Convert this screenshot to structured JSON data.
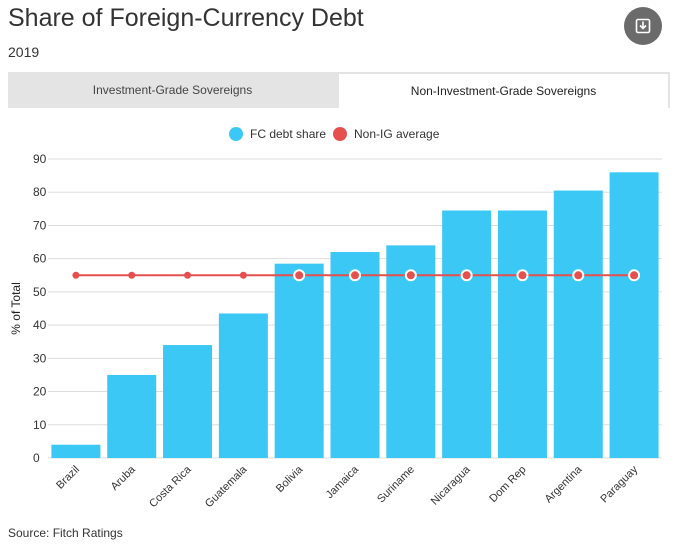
{
  "header": {
    "title": "Share of Foreign-Currency Debt",
    "subtitle": "2019",
    "download_icon": "download-icon"
  },
  "tabs": [
    {
      "label": "Investment-Grade Sovereigns",
      "active": false
    },
    {
      "label": "Non-Investment-Grade Sovereigns",
      "active": true
    }
  ],
  "footer": {
    "source": "Source: Fitch Ratings"
  },
  "colors": {
    "bar": "#3cc8f5",
    "line": "#e5504e",
    "grid": "#dddddd"
  },
  "chart_data": {
    "type": "bar",
    "categories": [
      "Brazil",
      "Aruba",
      "Costa Rica",
      "Guatemala",
      "Bolivia",
      "Jamaica",
      "Suriname",
      "Nicaragua",
      "Dom Rep",
      "Argentina",
      "Paraguay"
    ],
    "series": [
      {
        "name": "FC debt share",
        "type": "bar",
        "values": [
          4,
          25,
          34,
          43.5,
          58.5,
          62,
          64,
          74.5,
          74.5,
          80.5,
          86
        ]
      },
      {
        "name": "Non-IG average",
        "type": "line",
        "values": [
          55,
          55,
          55,
          55,
          55,
          55,
          55,
          55,
          55,
          55,
          55
        ]
      }
    ],
    "ylabel": "% of Total",
    "yticks": [
      0,
      10,
      20,
      30,
      40,
      50,
      60,
      70,
      80,
      90
    ],
    "ylim": [
      0,
      90
    ],
    "grid": true,
    "legend_position": "top-center"
  }
}
